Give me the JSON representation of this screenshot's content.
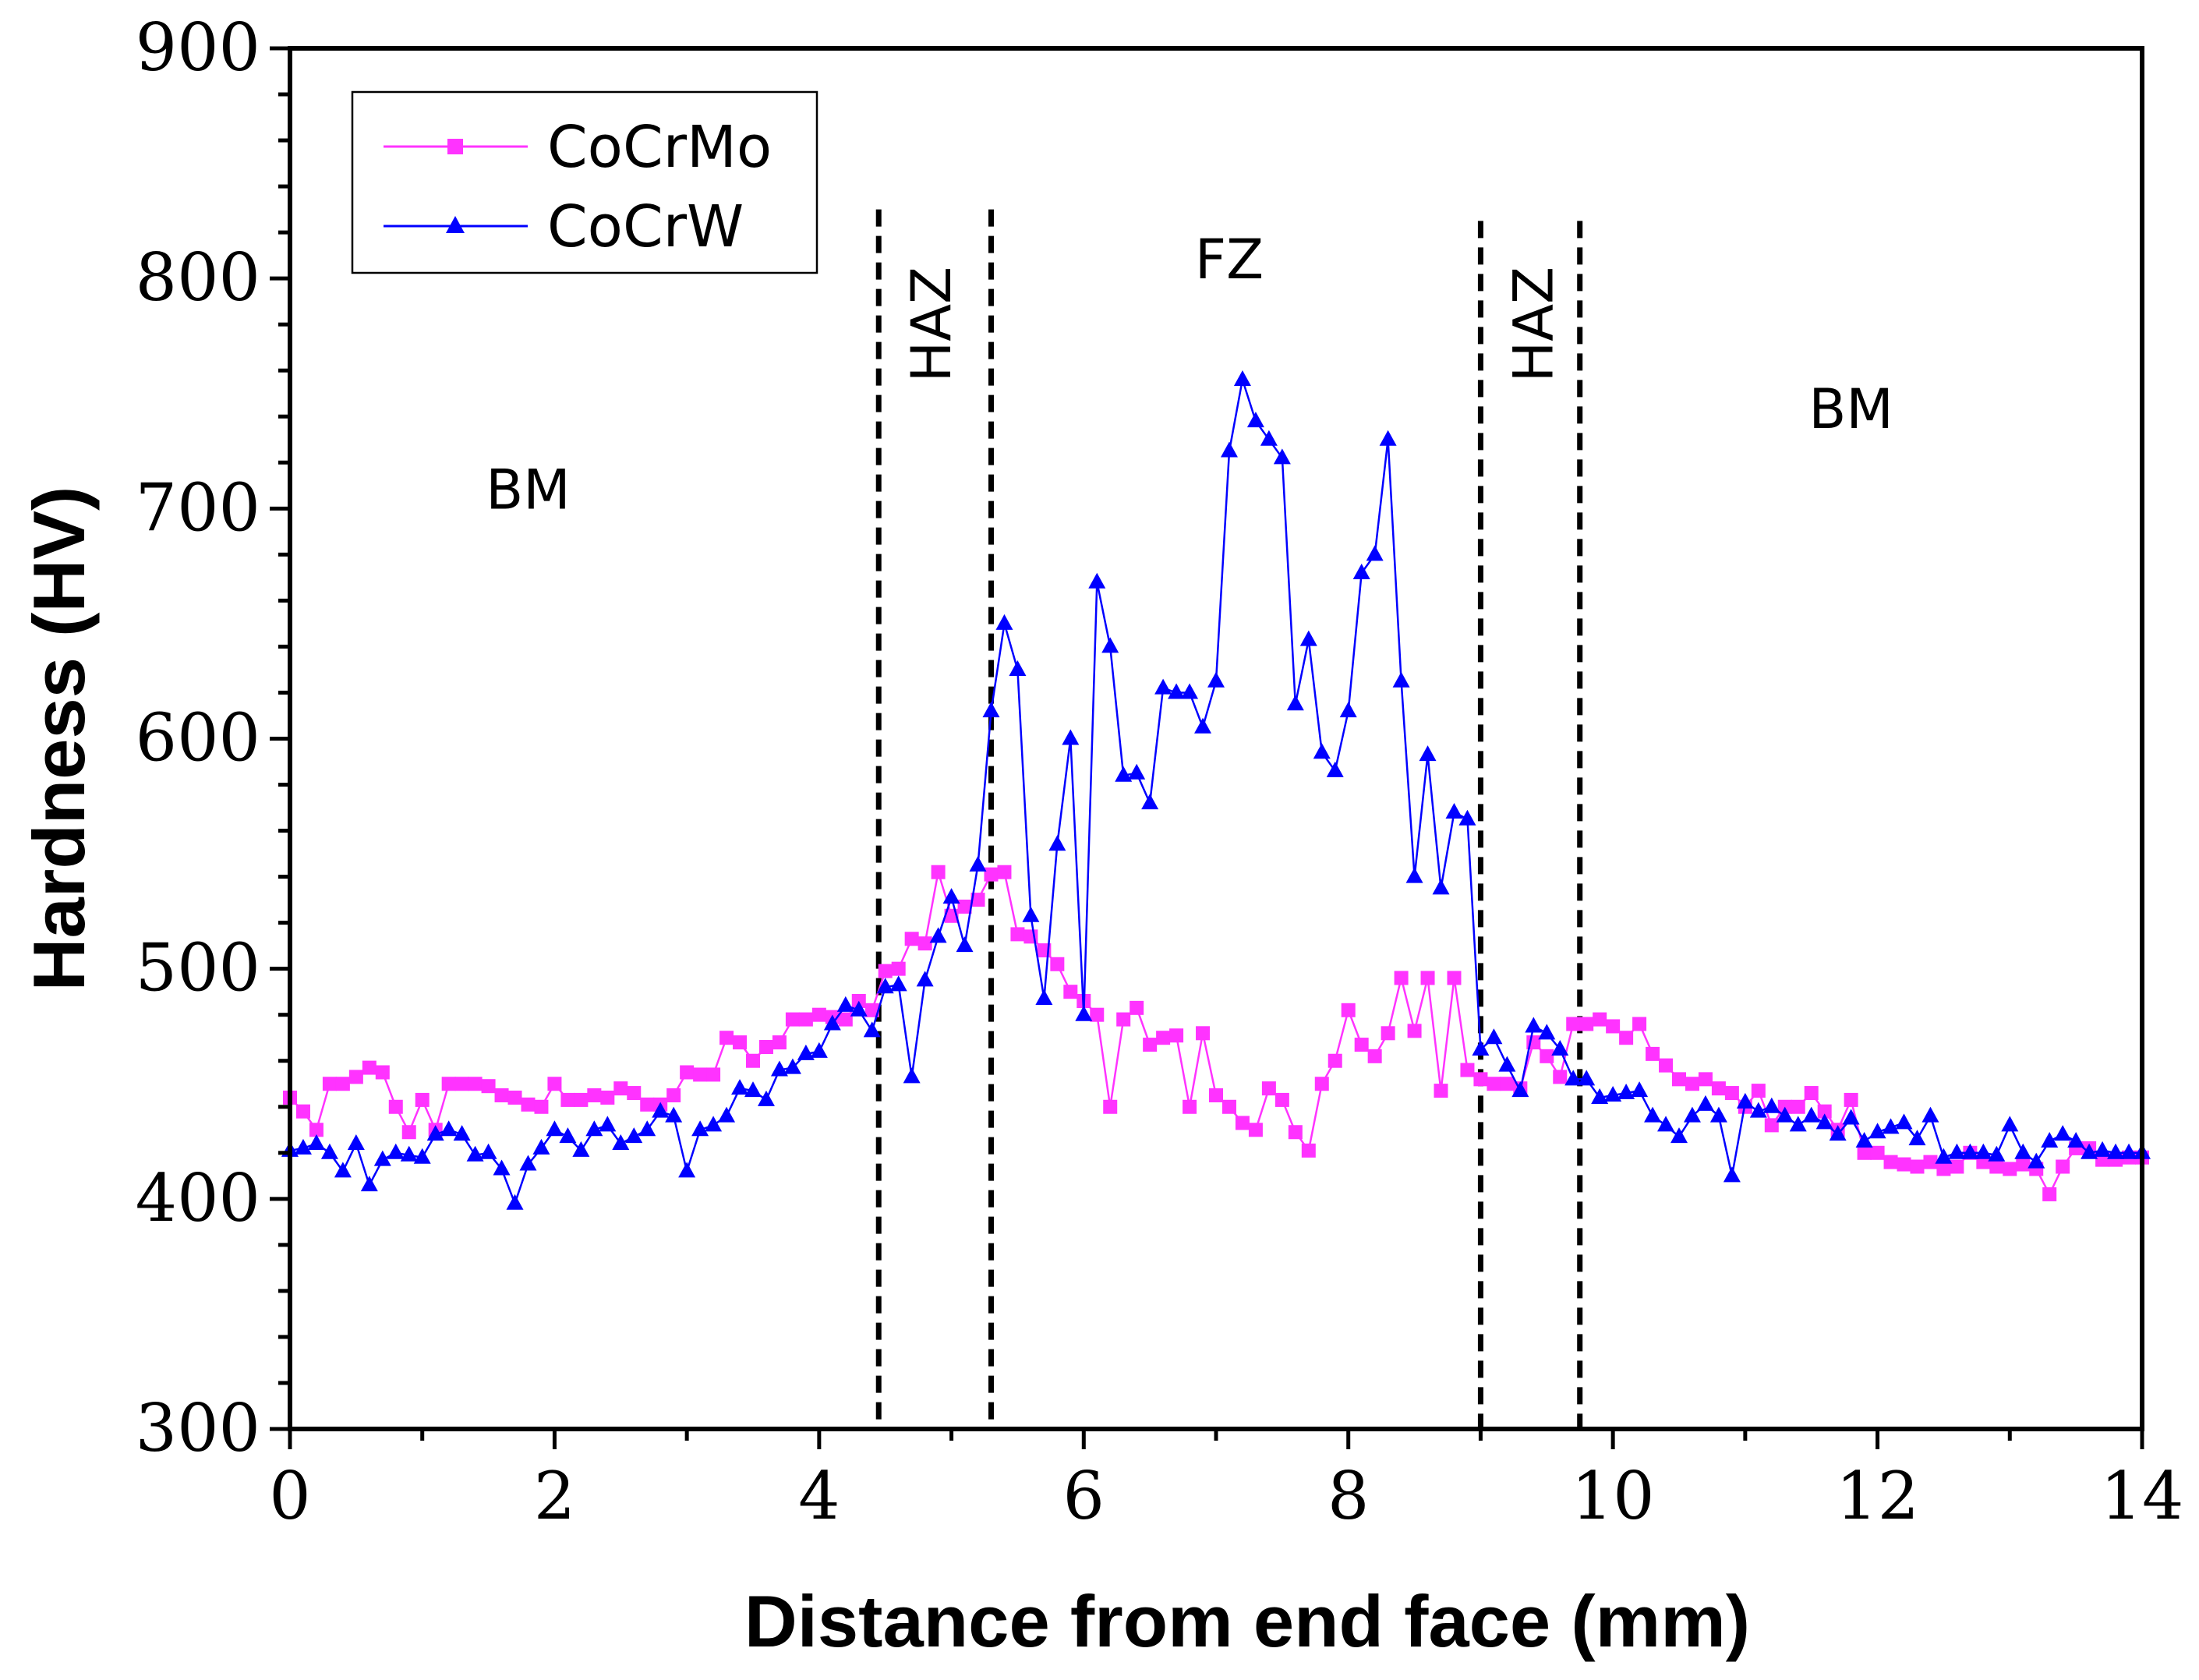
{
  "chart_data": {
    "type": "line",
    "title": "",
    "xlabel": "Distance from end face (mm)",
    "ylabel": "Hardness (HV)",
    "xlim": [
      0,
      14
    ],
    "ylim": [
      300,
      900
    ],
    "xticks": [
      "0",
      "2",
      "4",
      "6",
      "8",
      "10",
      "12",
      "14"
    ],
    "yticks": [
      "300",
      "400",
      "500",
      "600",
      "700",
      "800",
      "900"
    ],
    "grid": false,
    "legend_position": "top-left",
    "zone_boundaries": [
      4.45,
      5.3,
      9.0,
      9.75
    ],
    "zone_labels": [
      {
        "text": "BM",
        "x": 1.8,
        "y": 700,
        "rotated": false
      },
      {
        "text": "HAZ",
        "x": 4.85,
        "y": 780,
        "rotated": true
      },
      {
        "text": "FZ",
        "x": 7.1,
        "y": 800,
        "rotated": false
      },
      {
        "text": "HAZ",
        "x": 9.4,
        "y": 780,
        "rotated": true
      },
      {
        "text": "BM",
        "x": 11.8,
        "y": 735,
        "rotated": false
      }
    ],
    "series": [
      {
        "name": "CoCrMo",
        "color": "#ff33ff",
        "marker": "square",
        "x": [
          0,
          0.1,
          0.2,
          0.3,
          0.4,
          0.5,
          0.6,
          0.7,
          0.8,
          0.9,
          1.0,
          1.1,
          1.2,
          1.3,
          1.4,
          1.5,
          1.6,
          1.7,
          1.8,
          1.9,
          2.0,
          2.1,
          2.2,
          2.3,
          2.4,
          2.5,
          2.6,
          2.7,
          2.8,
          2.9,
          3.0,
          3.1,
          3.2,
          3.3,
          3.4,
          3.5,
          3.6,
          3.7,
          3.8,
          3.9,
          4.0,
          4.1,
          4.2,
          4.3,
          4.4,
          4.5,
          4.6,
          4.7,
          4.8,
          4.9,
          5.0,
          5.1,
          5.2,
          5.3,
          5.4,
          5.5,
          5.6,
          5.7,
          5.8,
          5.9,
          6.0,
          6.1,
          6.2,
          6.3,
          6.4,
          6.5,
          6.6,
          6.7,
          6.8,
          6.9,
          7.0,
          7.1,
          7.2,
          7.3,
          7.4,
          7.5,
          7.6,
          7.7,
          7.8,
          7.9,
          8.0,
          8.1,
          8.2,
          8.3,
          8.4,
          8.5,
          8.6,
          8.7,
          8.8,
          8.9,
          9.0,
          9.1,
          9.2,
          9.3,
          9.4,
          9.5,
          9.6,
          9.7,
          9.8,
          9.9,
          10.0,
          10.1,
          10.2,
          10.3,
          10.4,
          10.5,
          10.6,
          10.7,
          10.8,
          10.9,
          11.0,
          11.1,
          11.2,
          11.3,
          11.4,
          11.5,
          11.6,
          11.7,
          11.8,
          11.9,
          12.0,
          12.1,
          12.2,
          12.3,
          12.4,
          12.5,
          12.6,
          12.7,
          12.8,
          12.9,
          13.0,
          13.1,
          13.2,
          13.3,
          13.4,
          13.5,
          13.6,
          13.7,
          13.8,
          13.9,
          14.0
        ],
        "y": [
          444,
          438,
          430,
          450,
          450,
          453,
          457,
          455,
          440,
          429,
          443,
          430,
          450,
          450,
          450,
          449,
          445,
          444,
          441,
          440,
          450,
          443,
          443,
          445,
          444,
          448,
          446,
          441,
          441,
          445,
          455,
          454,
          454,
          470,
          468,
          460,
          466,
          468,
          478,
          478,
          480,
          479,
          478,
          486,
          482,
          499,
          500,
          513,
          511,
          542,
          523,
          527,
          530,
          541,
          542,
          515,
          514,
          508,
          502,
          490,
          486,
          480,
          440,
          478,
          483,
          467,
          470,
          471,
          440,
          472,
          445,
          440,
          433,
          430,
          448,
          443,
          429,
          421,
          450,
          460,
          482,
          467,
          462,
          472,
          496,
          473,
          496,
          447,
          496,
          456,
          452,
          450,
          450,
          448,
          468,
          462,
          453,
          476,
          476,
          478,
          475,
          470,
          476,
          463,
          458,
          452,
          450,
          452,
          448,
          446,
          440,
          447,
          432,
          440,
          440,
          446,
          438,
          430,
          443,
          420,
          420,
          416,
          415,
          414,
          416,
          413,
          414,
          420,
          416,
          414,
          413,
          415,
          413,
          402,
          414,
          422,
          422,
          417,
          417,
          418,
          418
        ]
      },
      {
        "name": "CoCrW",
        "color": "#0000ff",
        "marker": "triangle",
        "x": [
          0,
          0.1,
          0.2,
          0.3,
          0.4,
          0.5,
          0.6,
          0.7,
          0.8,
          0.9,
          1.0,
          1.1,
          1.2,
          1.3,
          1.4,
          1.5,
          1.6,
          1.7,
          1.8,
          1.9,
          2.0,
          2.1,
          2.2,
          2.3,
          2.4,
          2.5,
          2.6,
          2.7,
          2.8,
          2.9,
          3.0,
          3.1,
          3.2,
          3.3,
          3.4,
          3.5,
          3.6,
          3.7,
          3.8,
          3.9,
          4.0,
          4.1,
          4.2,
          4.3,
          4.4,
          4.5,
          4.6,
          4.7,
          4.8,
          4.9,
          5.0,
          5.1,
          5.2,
          5.3,
          5.4,
          5.5,
          5.6,
          5.7,
          5.8,
          5.9,
          6.0,
          6.1,
          6.2,
          6.3,
          6.4,
          6.5,
          6.6,
          6.7,
          6.8,
          6.9,
          7.0,
          7.1,
          7.2,
          7.3,
          7.4,
          7.5,
          7.6,
          7.7,
          7.8,
          7.9,
          8.0,
          8.1,
          8.2,
          8.3,
          8.4,
          8.5,
          8.6,
          8.7,
          8.8,
          8.9,
          9.0,
          9.1,
          9.2,
          9.3,
          9.4,
          9.5,
          9.6,
          9.7,
          9.8,
          9.9,
          10.0,
          10.1,
          10.2,
          10.3,
          10.4,
          10.5,
          10.6,
          10.7,
          10.8,
          10.9,
          11.0,
          11.1,
          11.2,
          11.3,
          11.4,
          11.5,
          11.6,
          11.7,
          11.8,
          11.9,
          12.0,
          12.1,
          12.2,
          12.3,
          12.4,
          12.5,
          12.6,
          12.7,
          12.8,
          12.9,
          13.0,
          13.1,
          13.2,
          13.3,
          13.4,
          13.5,
          13.6,
          13.7,
          13.8,
          13.9,
          14.0
        ],
        "y": [
          421,
          422,
          424,
          420,
          412,
          424,
          406,
          417,
          420,
          419,
          418,
          428,
          430,
          428,
          419,
          420,
          413,
          398,
          415,
          422,
          430,
          427,
          421,
          430,
          432,
          424,
          427,
          430,
          438,
          436,
          412,
          430,
          432,
          436,
          448,
          447,
          443,
          456,
          457,
          463,
          464,
          476,
          484,
          482,
          473,
          492,
          493,
          453,
          495,
          514,
          531,
          510,
          545,
          612,
          650,
          630,
          523,
          487,
          554,
          600,
          480,
          668,
          640,
          584,
          585,
          572,
          622,
          620,
          620,
          605,
          625,
          725,
          756,
          738,
          730,
          722,
          615,
          643,
          594,
          586,
          612,
          672,
          680,
          730,
          625,
          540,
          593,
          535,
          568,
          565,
          465,
          470,
          458,
          447,
          475,
          472,
          465,
          452,
          452,
          444,
          445,
          446,
          447,
          436,
          432,
          427,
          436,
          441,
          436,
          410,
          442,
          438,
          440,
          436,
          432,
          436,
          433,
          428,
          435,
          425,
          429,
          431,
          433,
          426,
          436,
          418,
          420,
          420,
          420,
          419,
          432,
          420,
          416,
          425,
          428,
          425,
          420,
          421,
          420,
          420,
          420
        ]
      }
    ]
  }
}
